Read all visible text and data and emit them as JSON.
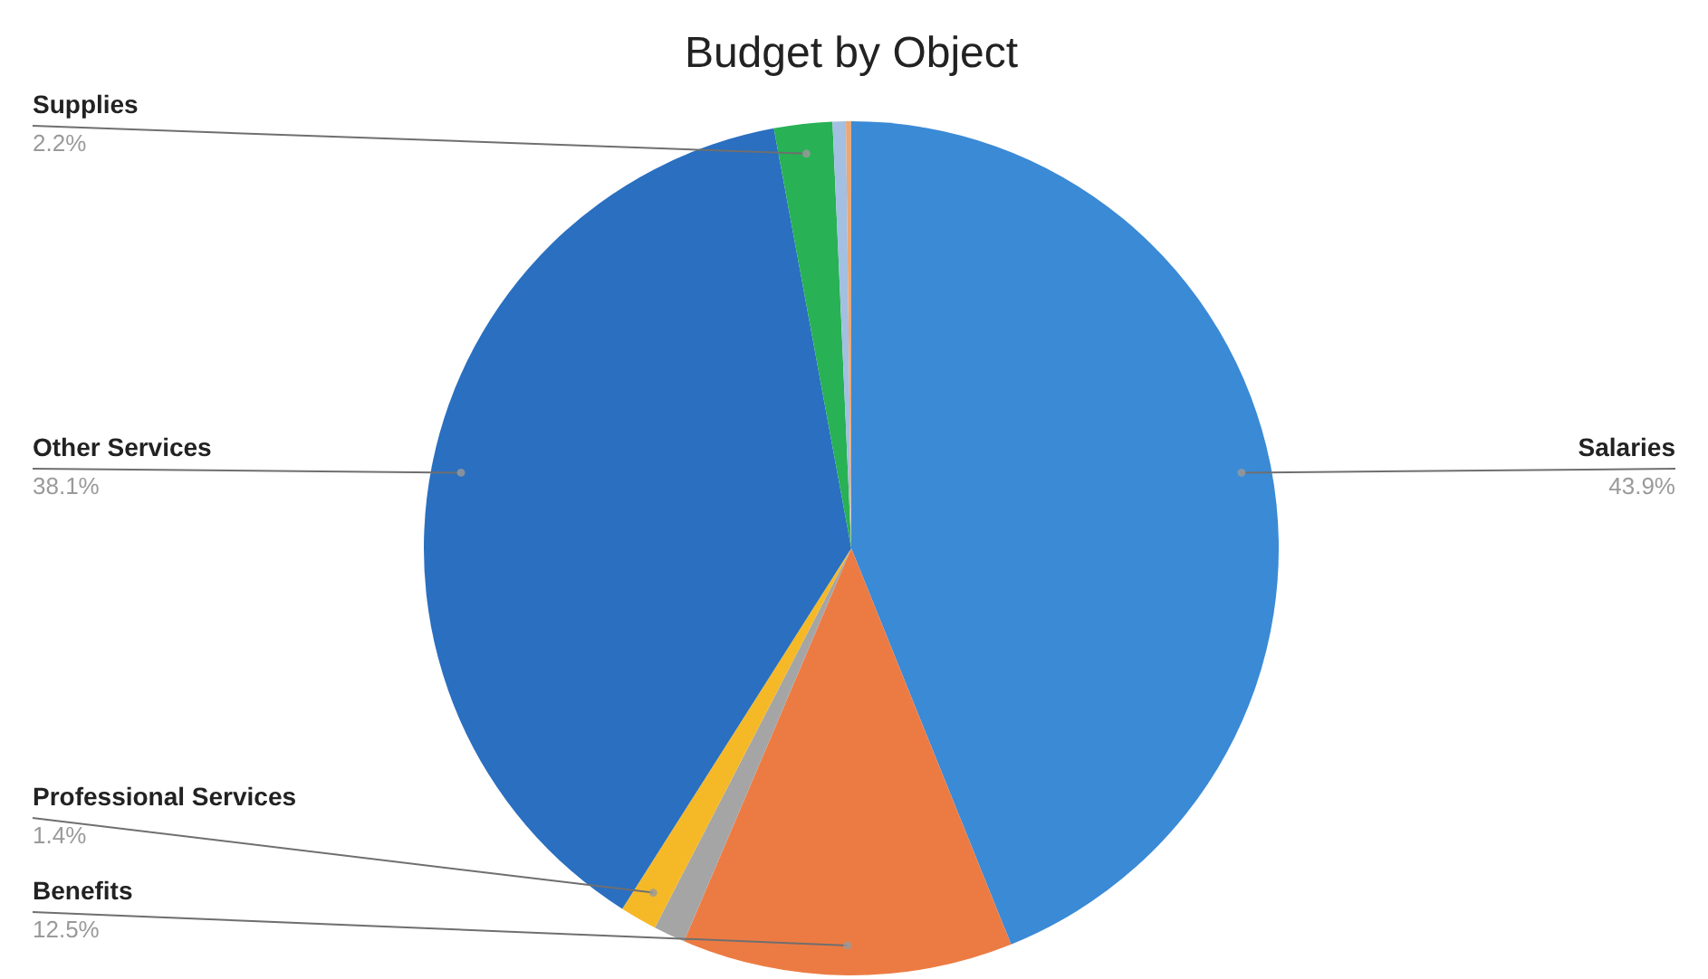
{
  "chart_data": {
    "type": "pie",
    "title": "Budget by Object",
    "categories": [
      "Salaries",
      "Benefits",
      null,
      "Professional Services",
      "Other Services",
      "Supplies",
      null,
      null
    ],
    "values": [
      43.9,
      12.5,
      1.2,
      1.4,
      38.1,
      2.2,
      0.5,
      0.2
    ],
    "value_labels": [
      "43.9%",
      "12.5%",
      null,
      "1.4%",
      "38.1%",
      "2.2%",
      null,
      null
    ],
    "colors": [
      "#3a8ad6",
      "#ec7b43",
      "#a5a5a5",
      "#f5b928",
      "#2a6fc0",
      "#28b155",
      "#a3bfe2",
      "#e8a878"
    ]
  }
}
